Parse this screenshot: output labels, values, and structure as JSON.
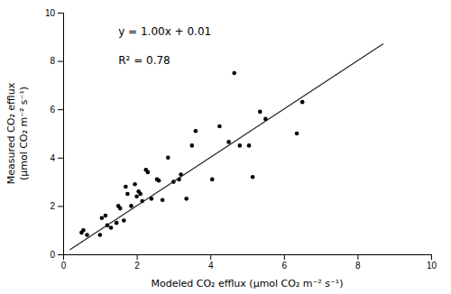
{
  "chart_data": {
    "type": "scatter",
    "xlabel": "Modeled CO₂ efflux  (μmol CO₂ m⁻² s⁻¹)",
    "ylabel": [
      "Measured CO₂ efflux",
      "(μmol CO₂ m⁻² s⁻¹)"
    ],
    "annotations": [
      "y = 1.00x + 0.01",
      "R² = 0.78"
    ],
    "series": [
      {
        "type": "scatter",
        "color": "#000000",
        "x": [
          0.5,
          0.55,
          0.65,
          1.0,
          1.05,
          1.15,
          1.2,
          1.3,
          1.45,
          1.5,
          1.55,
          1.65,
          1.7,
          1.75,
          1.85,
          1.95,
          2.0,
          2.05,
          2.1,
          2.15,
          2.25,
          2.3,
          2.4,
          2.55,
          2.6,
          2.7,
          2.85,
          3.0,
          3.15,
          3.2,
          3.35,
          3.5,
          3.6,
          4.05,
          4.25,
          4.5,
          4.65,
          4.8,
          5.05,
          5.15,
          5.35,
          5.5,
          6.35,
          6.5
        ],
        "values": [
          0.9,
          1.0,
          0.8,
          0.8,
          1.5,
          1.6,
          1.2,
          1.1,
          1.3,
          2.0,
          1.9,
          1.4,
          2.8,
          2.5,
          2.0,
          2.9,
          2.4,
          2.6,
          2.5,
          2.2,
          3.5,
          3.4,
          2.3,
          3.1,
          3.05,
          2.25,
          4.0,
          3.0,
          3.1,
          3.3,
          2.3,
          4.5,
          5.1,
          3.1,
          5.3,
          4.65,
          7.5,
          4.5,
          4.5,
          3.2,
          5.9,
          5.6,
          5.0,
          6.3
        ]
      },
      {
        "type": "line",
        "color": "#222222",
        "x": [
          0.18,
          8.7
        ],
        "values": [
          0.19,
          8.71
        ]
      }
    ],
    "xlim": [
      0,
      10
    ],
    "ylim": [
      0,
      10
    ],
    "xticks": [
      0,
      2,
      4,
      6,
      8,
      10
    ],
    "yticks": [
      0,
      2,
      4,
      6,
      8,
      10
    ],
    "grid": false
  }
}
